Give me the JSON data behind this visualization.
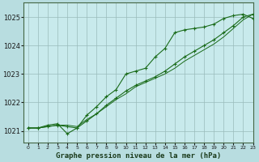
{
  "title": "Graphe pression niveau de la mer (hPa)",
  "background_color": "#b8dde0",
  "plot_bg_color": "#c8eaec",
  "grid_color": "#99bbbb",
  "line_color": "#1a6b1a",
  "xlim": [
    -0.5,
    23
  ],
  "ylim": [
    1020.6,
    1025.5
  ],
  "yticks": [
    1021,
    1022,
    1023,
    1024,
    1025
  ],
  "xticks": [
    0,
    1,
    2,
    3,
    4,
    5,
    6,
    7,
    8,
    9,
    10,
    11,
    12,
    13,
    14,
    15,
    16,
    17,
    18,
    19,
    20,
    21,
    22,
    23
  ],
  "series1": [
    1021.1,
    1021.1,
    1021.15,
    1021.2,
    1021.2,
    1021.15,
    1021.4,
    1021.6,
    1021.85,
    1022.1,
    1022.3,
    1022.55,
    1022.7,
    1022.85,
    1023.0,
    1023.2,
    1023.45,
    1023.65,
    1023.85,
    1024.05,
    1024.3,
    1024.6,
    1024.9,
    1025.1
  ],
  "series2": [
    1021.1,
    1021.1,
    1021.2,
    1021.25,
    1020.9,
    1021.1,
    1021.55,
    1021.85,
    1022.2,
    1022.45,
    1023.0,
    1023.1,
    1023.2,
    1023.6,
    1023.9,
    1024.45,
    1024.55,
    1024.6,
    1024.65,
    1024.75,
    1024.95,
    1025.05,
    1025.1,
    1024.95
  ],
  "series3": [
    1021.1,
    1021.1,
    1021.15,
    1021.2,
    1021.15,
    1021.1,
    1021.35,
    1021.6,
    1021.9,
    1022.15,
    1022.4,
    1022.6,
    1022.75,
    1022.9,
    1023.1,
    1023.35,
    1023.6,
    1023.8,
    1024.0,
    1024.2,
    1024.45,
    1024.7,
    1025.0,
    1025.1
  ],
  "title_fontsize": 6.5,
  "ytick_fontsize": 6,
  "xtick_fontsize": 4.5
}
